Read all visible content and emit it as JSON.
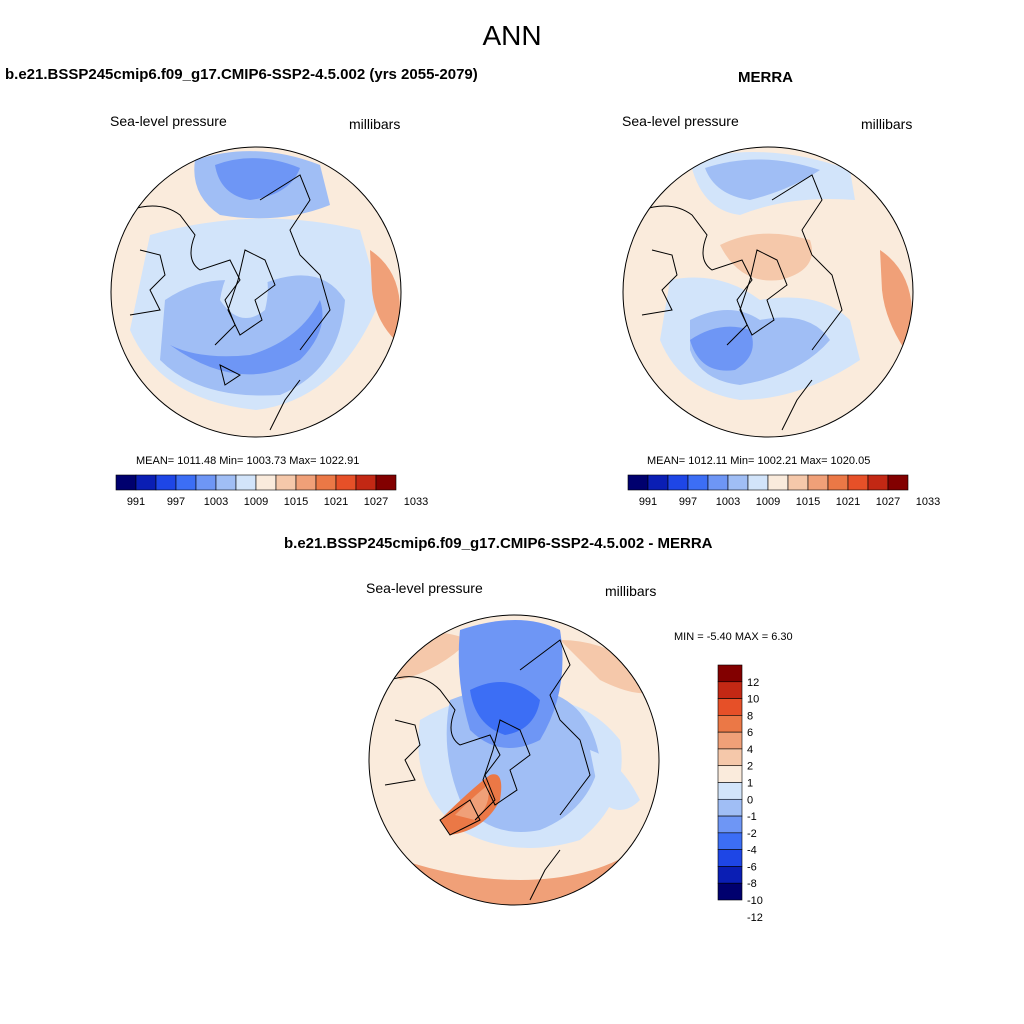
{
  "figure_title": "ANN",
  "colors": {
    "abs_palette": [
      "#00006e",
      "#0a1eb4",
      "#1e46e6",
      "#3c6ef5",
      "#6e96f5",
      "#a0bef5",
      "#d2e4fa",
      "#faebdc",
      "#f5c8aa",
      "#f0a078",
      "#eb7846",
      "#e65028",
      "#c32814",
      "#820000"
    ],
    "diff_palette": [
      "#00006e",
      "#0a1eb4",
      "#1e46e6",
      "#3c6ef5",
      "#6e96f5",
      "#a0bef5",
      "#d2e4fa",
      "#faebdc",
      "#f5c8aa",
      "#f0a078",
      "#eb7846",
      "#e65028",
      "#c32814",
      "#820000"
    ]
  },
  "panels": {
    "model": {
      "title": "b.e21.BSSP245cmip6.f09_g17.CMIP6-SSP2-4.5.002 (yrs 2055-2079)",
      "left_label": "Sea-level pressure",
      "right_label": "millibars",
      "stats": "MEAN= 1011.48  Min= 1003.73  Max= 1022.91",
      "colorbar_ticks": [
        "991",
        "997",
        "1003",
        "1009",
        "1015",
        "1021",
        "1027",
        "1033"
      ]
    },
    "obs": {
      "title": "MERRA",
      "left_label": "Sea-level pressure",
      "right_label": "millibars",
      "stats": "MEAN= 1012.11  Min= 1002.21  Max= 1020.05",
      "colorbar_ticks": [
        "991",
        "997",
        "1003",
        "1009",
        "1015",
        "1021",
        "1027",
        "1033"
      ]
    },
    "diff": {
      "title": "b.e21.BSSP245cmip6.f09_g17.CMIP6-SSP2-4.5.002 - MERRA",
      "left_label": "Sea-level pressure",
      "right_label": "millibars",
      "stats": "MIN =  -5.40 MAX =   6.30",
      "colorbar_ticks": [
        "12",
        "10",
        "8",
        "6",
        "4",
        "2",
        "1",
        "0",
        "-1",
        "-2",
        "-4",
        "-6",
        "-8",
        "-10",
        "-12"
      ]
    }
  }
}
